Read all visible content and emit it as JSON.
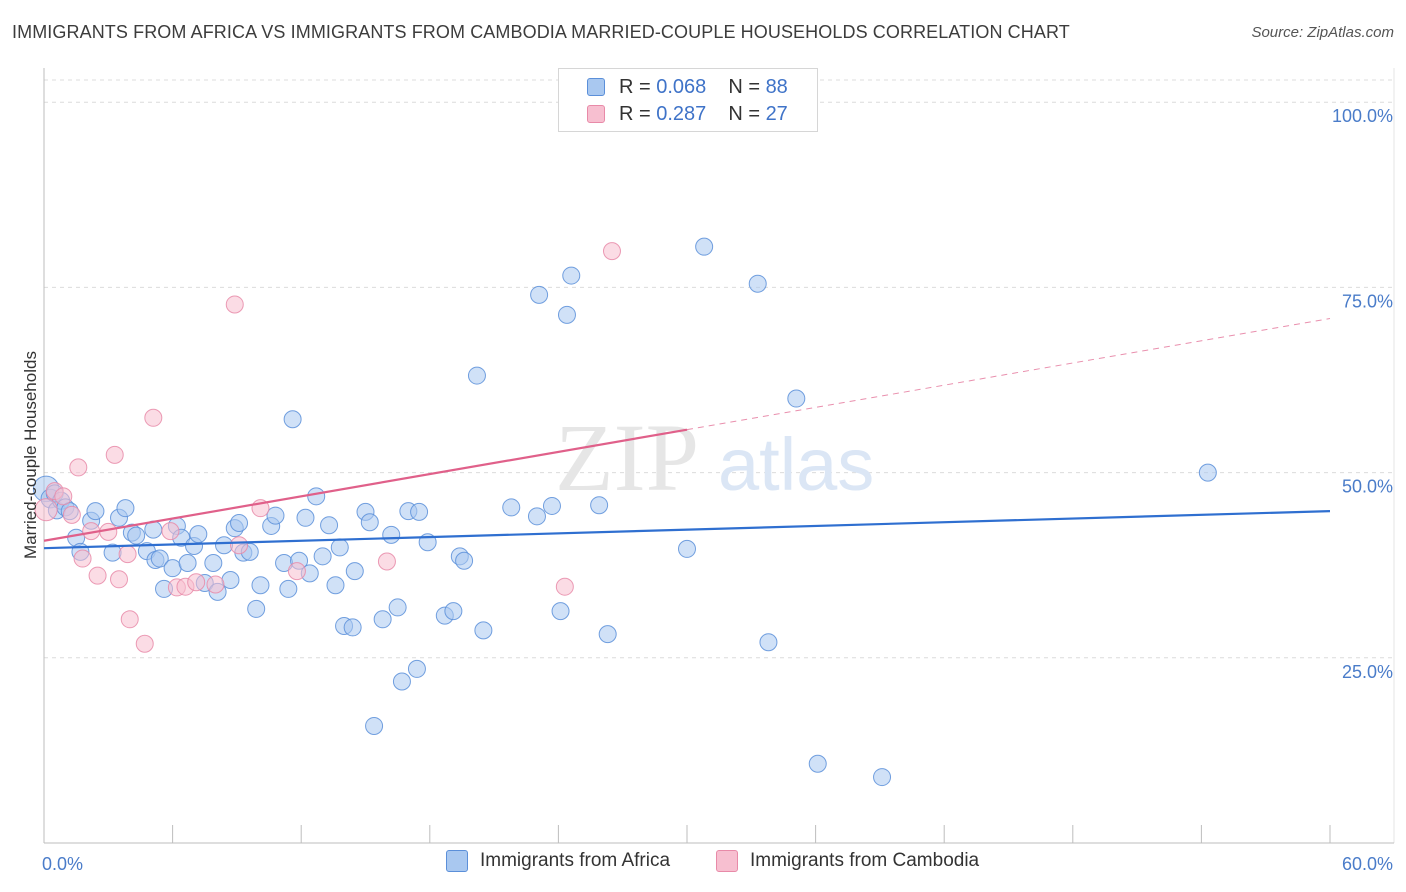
{
  "header": {
    "title": "IMMIGRANTS FROM AFRICA VS IMMIGRANTS FROM CAMBODIA MARRIED-COUPLE HOUSEHOLDS CORRELATION CHART",
    "source": "Source: ZipAtlas.com"
  },
  "watermark": {
    "zip": "ZIP",
    "atlas": "atlas"
  },
  "legend_top": {
    "rows": [
      {
        "r_label": "R =",
        "r_value": "0.068",
        "n_label": "N =",
        "n_value": "88"
      },
      {
        "r_label": "R =",
        "r_value": "0.287",
        "n_label": "N =",
        "n_value": "27"
      }
    ]
  },
  "legend_bottom": {
    "africa": "Immigrants from Africa",
    "cambodia": "Immigrants from Cambodia"
  },
  "colors": {
    "africa_fill": "#a9c8f0",
    "africa_stroke": "#5b8fd9",
    "africa_line": "#2f6fd0",
    "cambodia_fill": "#f7bfd0",
    "cambodia_stroke": "#e88aa8",
    "cambodia_line": "#e0608a",
    "grid": "#dcdcdc",
    "tick_text": "#4a7cc9"
  },
  "chart_data": {
    "type": "scatter",
    "title": "IMMIGRANTS FROM AFRICA VS IMMIGRANTS FROM CAMBODIA MARRIED-COUPLE HOUSEHOLDS CORRELATION CHART",
    "xlabel": "",
    "ylabel": "Married-couple Households",
    "xlim": [
      0,
      60
    ],
    "ylim": [
      0,
      103
    ],
    "x_tick_labels": [
      {
        "value": 0,
        "label": "0.0%"
      },
      {
        "value": 60,
        "label": "60.0%"
      }
    ],
    "y_tick_labels": [
      {
        "value": 25,
        "label": "25.0%"
      },
      {
        "value": 50,
        "label": "50.0%"
      },
      {
        "value": 75,
        "label": "75.0%"
      },
      {
        "value": 100,
        "label": "100.0%"
      }
    ],
    "grid": true,
    "legend_position": "bottom",
    "series": [
      {
        "name": "Immigrants from Africa",
        "R": 0.068,
        "N": 88,
        "trend": {
          "x0": 0,
          "y0": 39.8,
          "x1": 60,
          "y1": 44.8
        },
        "points": [
          [
            0.1,
            47.8,
            1.5
          ],
          [
            0.3,
            46.5,
            1.1
          ],
          [
            0.5,
            47.2,
            1
          ],
          [
            0.6,
            44.9,
            1
          ],
          [
            0.8,
            46.2,
            1
          ],
          [
            1.0,
            45.3,
            1
          ],
          [
            1.2,
            44.8,
            1
          ],
          [
            1.5,
            41.2,
            1
          ],
          [
            1.7,
            39.3,
            1
          ],
          [
            2.2,
            43.5,
            1
          ],
          [
            2.4,
            44.8,
            1
          ],
          [
            3.2,
            39.2,
            1
          ],
          [
            3.5,
            43.9,
            1
          ],
          [
            3.8,
            45.2,
            1
          ],
          [
            4.1,
            41.9,
            1
          ],
          [
            4.3,
            41.5,
            1
          ],
          [
            4.8,
            39.4,
            1
          ],
          [
            5.1,
            42.3,
            1
          ],
          [
            5.2,
            38.2,
            1
          ],
          [
            5.4,
            38.4,
            1
          ],
          [
            5.6,
            34.3,
            1
          ],
          [
            6.0,
            37.1,
            1
          ],
          [
            6.2,
            42.8,
            1
          ],
          [
            6.4,
            41.2,
            1
          ],
          [
            6.7,
            37.8,
            1
          ],
          [
            7.0,
            40.1,
            1
          ],
          [
            7.2,
            41.7,
            1
          ],
          [
            7.5,
            35.1,
            1
          ],
          [
            7.9,
            37.8,
            1
          ],
          [
            8.1,
            33.9,
            1
          ],
          [
            8.4,
            40.2,
            1
          ],
          [
            8.7,
            35.5,
            1
          ],
          [
            8.9,
            42.5,
            1
          ],
          [
            9.1,
            43.2,
            1
          ],
          [
            9.3,
            39.2,
            1
          ],
          [
            9.6,
            39.3,
            1
          ],
          [
            9.9,
            31.6,
            1
          ],
          [
            10.1,
            34.8,
            1
          ],
          [
            10.6,
            42.8,
            1
          ],
          [
            10.8,
            44.2,
            1
          ],
          [
            11.2,
            37.8,
            1
          ],
          [
            11.4,
            34.3,
            1
          ],
          [
            11.6,
            57.2,
            1
          ],
          [
            11.9,
            38.1,
            1
          ],
          [
            12.2,
            43.9,
            1
          ],
          [
            12.4,
            36.4,
            1
          ],
          [
            12.7,
            46.8,
            1
          ],
          [
            13.0,
            38.7,
            1
          ],
          [
            13.3,
            42.9,
            1
          ],
          [
            13.6,
            34.8,
            1
          ],
          [
            13.8,
            39.9,
            1
          ],
          [
            14.0,
            29.3,
            1
          ],
          [
            14.4,
            29.1,
            1
          ],
          [
            14.5,
            36.7,
            1
          ],
          [
            15.0,
            44.7,
            1
          ],
          [
            15.2,
            43.3,
            1
          ],
          [
            15.4,
            15.8,
            1
          ],
          [
            15.8,
            30.2,
            1
          ],
          [
            16.2,
            41.6,
            1
          ],
          [
            16.5,
            31.8,
            1
          ],
          [
            16.7,
            21.8,
            1
          ],
          [
            17.0,
            44.8,
            1
          ],
          [
            17.4,
            23.5,
            1
          ],
          [
            17.5,
            44.7,
            1
          ],
          [
            17.9,
            40.6,
            1
          ],
          [
            18.7,
            30.7,
            1
          ],
          [
            19.1,
            31.3,
            1
          ],
          [
            19.4,
            38.7,
            1
          ],
          [
            19.6,
            38.1,
            1
          ],
          [
            20.2,
            63.1,
            1
          ],
          [
            20.5,
            28.7,
            1
          ],
          [
            21.8,
            45.3,
            1
          ],
          [
            23.0,
            44.1,
            1
          ],
          [
            23.1,
            74.0,
            1
          ],
          [
            23.7,
            45.5,
            1
          ],
          [
            24.1,
            31.3,
            1
          ],
          [
            24.4,
            71.3,
            1
          ],
          [
            24.6,
            76.6,
            1
          ],
          [
            25.9,
            45.6,
            1
          ],
          [
            26.3,
            28.2,
            1
          ],
          [
            30.0,
            39.7,
            1
          ],
          [
            30.8,
            80.5,
            1
          ],
          [
            33.3,
            75.5,
            1
          ],
          [
            33.8,
            27.1,
            1
          ],
          [
            35.1,
            60.0,
            1
          ],
          [
            36.1,
            10.7,
            1
          ],
          [
            39.1,
            8.9,
            1
          ],
          [
            54.3,
            50.0,
            1
          ]
        ]
      },
      {
        "name": "Immigrants from Cambodia",
        "R": 0.287,
        "N": 27,
        "trend": {
          "x0": 0,
          "y0": 40.8,
          "x1": 30,
          "y1": 55.8,
          "dash_to_x": 60,
          "dash_to_y": 70.8
        },
        "points": [
          [
            0.1,
            45.0,
            1.3
          ],
          [
            0.5,
            47.5,
            1
          ],
          [
            0.9,
            46.8,
            1
          ],
          [
            1.3,
            44.3,
            1
          ],
          [
            1.6,
            50.7,
            1
          ],
          [
            1.8,
            38.4,
            1
          ],
          [
            2.2,
            42.1,
            1
          ],
          [
            2.5,
            36.1,
            1
          ],
          [
            3.0,
            42.0,
            1
          ],
          [
            3.3,
            52.4,
            1
          ],
          [
            3.5,
            35.6,
            1
          ],
          [
            3.9,
            39.0,
            1
          ],
          [
            4.0,
            30.2,
            1
          ],
          [
            4.7,
            26.9,
            1
          ],
          [
            5.1,
            57.4,
            1
          ],
          [
            5.9,
            42.1,
            1
          ],
          [
            6.2,
            34.5,
            1
          ],
          [
            6.6,
            34.6,
            1
          ],
          [
            7.1,
            35.2,
            1
          ],
          [
            8.0,
            34.9,
            1
          ],
          [
            8.9,
            72.7,
            1
          ],
          [
            9.1,
            40.2,
            1
          ],
          [
            10.1,
            45.2,
            1
          ],
          [
            11.8,
            36.7,
            1
          ],
          [
            16.0,
            38.0,
            1
          ],
          [
            24.3,
            34.6,
            1
          ],
          [
            26.5,
            79.9,
            1
          ]
        ]
      }
    ]
  }
}
